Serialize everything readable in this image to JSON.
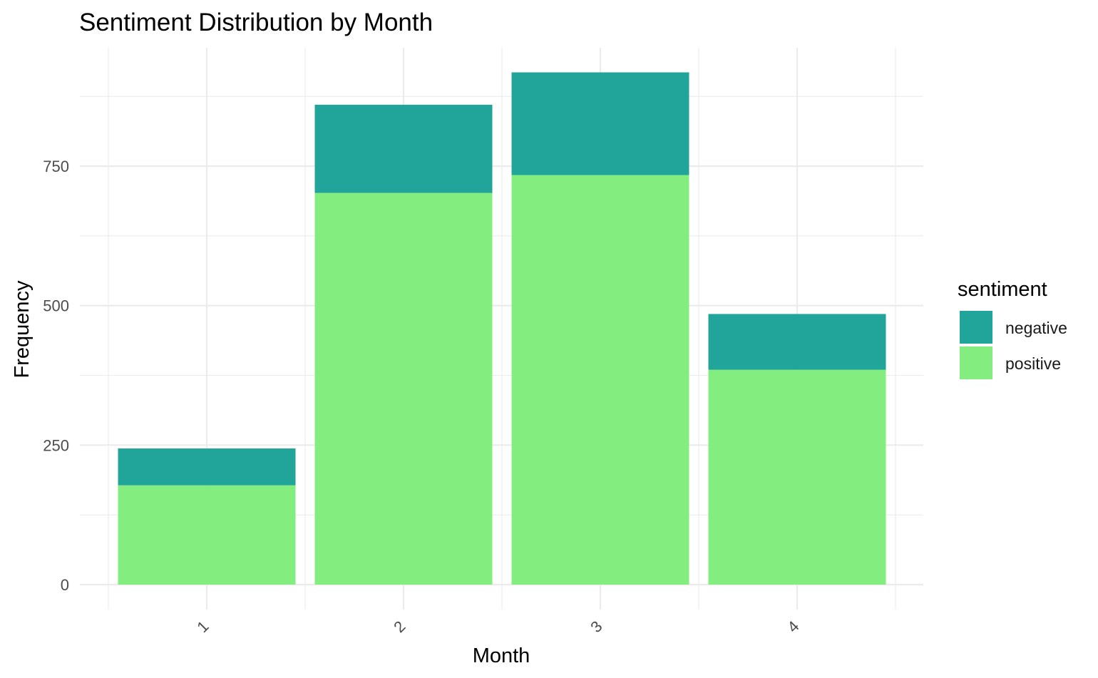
{
  "chart_data": {
    "type": "bar",
    "stacked": true,
    "title": "Sentiment Distribution by Month",
    "xlabel": "Month",
    "ylabel": "Frequency",
    "categories": [
      "1",
      "2",
      "3",
      "4"
    ],
    "series": [
      {
        "name": "positive",
        "color": "#83ED7F",
        "values": [
          178,
          702,
          734,
          385
        ]
      },
      {
        "name": "negative",
        "color": "#21A59A",
        "values": [
          66,
          158,
          184,
          100
        ]
      }
    ],
    "yticks": [
      0,
      250,
      500,
      750
    ],
    "ylim": [
      -37,
      960
    ],
    "grid": true,
    "legend": {
      "title": "sentiment",
      "position": "right",
      "entries": [
        "negative",
        "positive"
      ]
    }
  }
}
